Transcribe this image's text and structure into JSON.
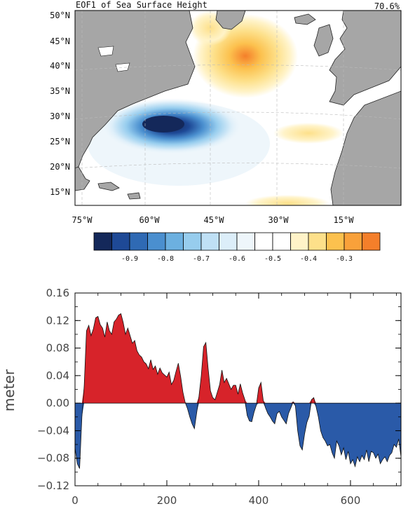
{
  "map_panel": {
    "title": "EOF1 of Sea Surface Height",
    "variance": "70.6%",
    "lon_labels": [
      "75°W",
      "60°W",
      "45°W",
      "30°W",
      "15°W"
    ],
    "lat_labels": [
      "50°N",
      "45°N",
      "40°N",
      "35°N",
      "30°N",
      "25°N",
      "20°N",
      "15°N"
    ],
    "colorbar": {
      "colors": [
        "#14285a",
        "#1e4996",
        "#2f6ab4",
        "#4a8fcf",
        "#6cb0e0",
        "#97cdee",
        "#bfe0f5",
        "#dceef9",
        "#eef6fb",
        "#ffffff",
        "#ffffff",
        "#fff3c8",
        "#fde08a",
        "#fcc14e",
        "#f9a13a",
        "#f47f2a"
      ],
      "labels": [
        "-0.9",
        "-0.8",
        "-0.7",
        "-0.6",
        "-0.5",
        "-0.4",
        "-0.3"
      ]
    }
  },
  "chart_data": {
    "type": "area",
    "title": "",
    "xlabel": "",
    "ylabel": "meter",
    "xlim": [
      0,
      710
    ],
    "ylim": [
      -0.12,
      0.16
    ],
    "xticks": [
      0,
      200,
      400,
      600
    ],
    "yticks": [
      -0.12,
      -0.08,
      -0.04,
      0.0,
      0.04,
      0.08,
      0.12,
      0.16
    ],
    "xtick_labels": [
      "0",
      "200",
      "400",
      "600"
    ],
    "ytick_labels": [
      "−0.12",
      "−0.08",
      "−0.04",
      "0.00",
      "0.04",
      "0.08",
      "0.12",
      "0.16"
    ],
    "positive_color": "#d7232a",
    "negative_color": "#2a5aa8",
    "x": [
      0,
      5,
      10,
      15,
      20,
      25,
      30,
      35,
      40,
      45,
      50,
      55,
      60,
      65,
      70,
      75,
      80,
      85,
      90,
      95,
      100,
      105,
      110,
      115,
      120,
      125,
      130,
      135,
      140,
      145,
      150,
      155,
      160,
      165,
      170,
      175,
      180,
      185,
      190,
      195,
      200,
      205,
      210,
      215,
      220,
      225,
      230,
      235,
      240,
      245,
      250,
      255,
      260,
      265,
      270,
      275,
      280,
      285,
      290,
      295,
      300,
      305,
      310,
      315,
      320,
      325,
      330,
      335,
      340,
      345,
      350,
      355,
      360,
      365,
      370,
      375,
      380,
      385,
      390,
      395,
      400,
      405,
      410,
      415,
      420,
      425,
      430,
      435,
      440,
      445,
      450,
      455,
      460,
      465,
      470,
      475,
      480,
      485,
      490,
      495,
      500,
      505,
      510,
      515,
      520,
      525,
      530,
      535,
      540,
      545,
      550,
      555,
      560,
      565,
      570,
      575,
      580,
      585,
      590,
      595,
      600,
      605,
      610,
      615,
      620,
      625,
      630,
      635,
      640,
      645,
      650,
      655,
      660,
      665,
      670,
      675,
      680,
      685,
      690,
      695,
      700,
      705,
      710
    ],
    "y": [
      -0.065,
      -0.088,
      -0.095,
      -0.02,
      0.025,
      0.105,
      0.113,
      0.098,
      0.108,
      0.124,
      0.126,
      0.114,
      0.109,
      0.096,
      0.118,
      0.105,
      0.1,
      0.118,
      0.122,
      0.128,
      0.13,
      0.117,
      0.1,
      0.109,
      0.098,
      0.087,
      0.091,
      0.076,
      0.07,
      0.067,
      0.06,
      0.057,
      0.05,
      0.063,
      0.049,
      0.054,
      0.042,
      0.051,
      0.044,
      0.041,
      0.038,
      0.045,
      0.027,
      0.033,
      0.046,
      0.058,
      0.039,
      0.016,
      0.001,
      -0.008,
      -0.02,
      -0.03,
      -0.037,
      -0.014,
      0.01,
      0.04,
      0.082,
      0.088,
      0.05,
      0.018,
      0.008,
      0.005,
      0.016,
      0.027,
      0.048,
      0.03,
      0.036,
      0.028,
      0.02,
      0.026,
      0.026,
      0.013,
      0.028,
      0.015,
      0.005,
      -0.018,
      -0.026,
      -0.027,
      -0.013,
      -0.003,
      0.022,
      0.03,
      0.004,
      -0.007,
      -0.015,
      -0.02,
      -0.026,
      -0.03,
      -0.015,
      -0.012,
      -0.02,
      -0.025,
      -0.03,
      -0.015,
      -0.007,
      0.002,
      -0.004,
      -0.04,
      -0.062,
      -0.068,
      -0.045,
      -0.028,
      -0.019,
      0.005,
      0.008,
      -0.005,
      -0.02,
      -0.04,
      -0.05,
      -0.055,
      -0.062,
      -0.06,
      -0.072,
      -0.08,
      -0.055,
      -0.062,
      -0.075,
      -0.065,
      -0.082,
      -0.07,
      -0.088,
      -0.082,
      -0.092,
      -0.078,
      -0.085,
      -0.076,
      -0.082,
      -0.068,
      -0.085,
      -0.07,
      -0.072,
      -0.08,
      -0.074,
      -0.088,
      -0.082,
      -0.078,
      -0.085,
      -0.076,
      -0.072,
      -0.06,
      -0.064,
      -0.052,
      -0.078
    ]
  }
}
